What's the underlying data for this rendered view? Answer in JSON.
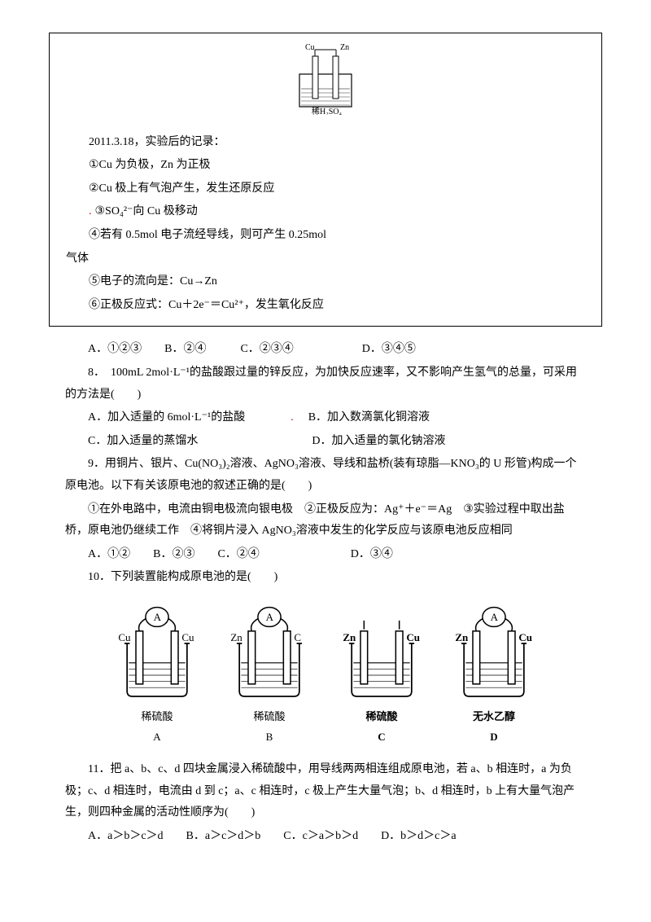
{
  "box": {
    "diagram": {
      "left_electrode": "Cu",
      "right_electrode": "Zn",
      "electrolyte": "稀H₂SO₄"
    },
    "date_line": "2011.3.18，实验后的记录：",
    "line1": "①Cu 为负极，Zn 为正极",
    "line2": "②Cu 极上有气泡产生，发生还原反应",
    "line3": "③SO₄²⁻向 Cu 极移动",
    "line4a": "④若有 0.5mol 电子流经导线，则可产生 0.25mol",
    "line4b": "气体",
    "line5": "⑤电子的流向是：Cu→Zn",
    "line6": "⑥正极反应式：Cu＋2e⁻＝Cu²⁺，发生氧化反应"
  },
  "q7_opts": "A．①②③　　B．②④　　　C．②③④　　　　　　D．③④⑤",
  "q8": {
    "stem": "8．　100mL 2mol·L⁻¹的盐酸跟过量的锌反应，为加快反应速率，又不影响产生氢气的总量，可采用的方法是(　　)",
    "optsA": "A．加入适量的 6mol·L⁻¹的盐酸　　　　",
    "optsB": "　B．加入数滴氯化铜溶液",
    "optsC": "C．加入适量的蒸馏水　　　　　　　　　　D．加入适量的氯化钠溶液"
  },
  "q9": {
    "line1": "9．用铜片、银片、Cu(NO₃)₂溶液、AgNO₃溶液、导线和盐桥(装有琼脂—KNO₃的 U 形管)构成一个原电池。以下有关该原电池的叙述正确的是(　　)",
    "line2": "①在外电路中，电流由铜电极流向银电极　②正极反应为：Ag⁺＋e⁻＝Ag　③实验过程中取出盐桥，原电池仍继续工作　④将铜片浸入 AgNO₃溶液中发生的化学反应与该原电池反应相同",
    "opts": "A．①②　　B．②③　　C．②④　　　　　　　　D．③④"
  },
  "q10": {
    "stem": "10．下列装置能构成原电池的是(　　)",
    "cells": [
      {
        "left": "Cu",
        "right": "Cu",
        "ammeter": true,
        "solution": "稀硫酸",
        "label": "A",
        "bold": false
      },
      {
        "left": "Zn",
        "right": "C",
        "ammeter": true,
        "solution": "稀硫酸",
        "label": "B",
        "bold": false
      },
      {
        "left": "Zn",
        "right": "Cu",
        "ammeter": false,
        "solution": "稀硫酸",
        "label": "C",
        "bold": true
      },
      {
        "left": "Zn",
        "right": "Cu",
        "ammeter": true,
        "solution": "无水乙醇",
        "label": "D",
        "bold": true
      }
    ]
  },
  "q11": {
    "stem": "11．把 a、b、c、d 四块金属浸入稀硫酸中，用导线两两相连组成原电池，若 a、b 相连时，a 为负极；c、d 相连时，电流由 d 到 c；a、c 相连时，c 极上产生大量气泡；b、d 相连时，b 上有大量气泡产生，则四种金属的活动性顺序为(　　)",
    "opts": "A．a＞b＞c＞d　　B．a＞c＞d＞b　　C．c＞a＞b＞d　　D．b＞d＞c＞a"
  }
}
